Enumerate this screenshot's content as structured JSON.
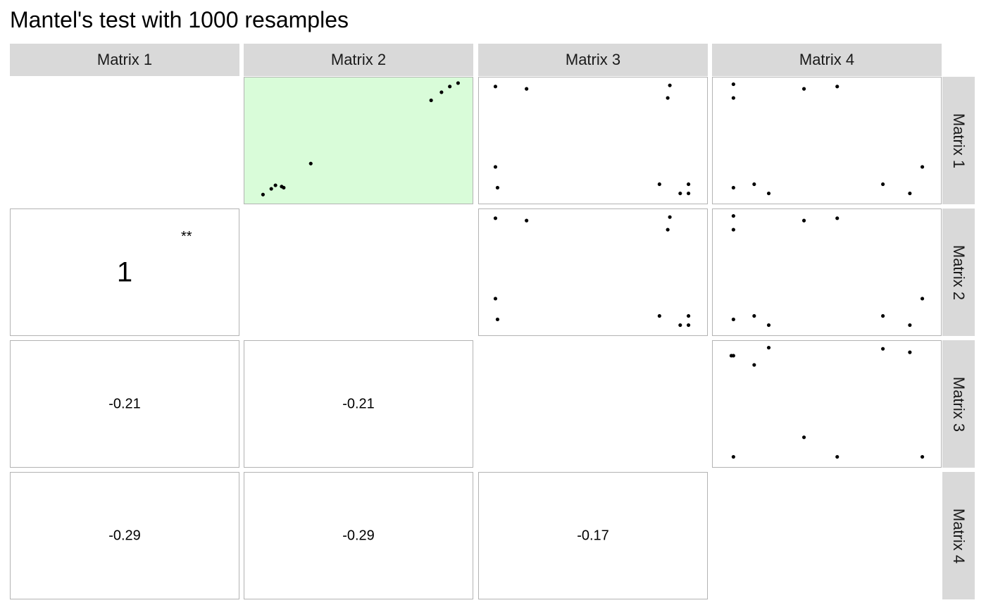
{
  "title": "Mantel's test with 1000 resamples",
  "colors": {
    "strip_bg": "#d9d9d9",
    "panel_border": "#b3b3b3",
    "significant_fill": "#d9fcd9",
    "point": "#000000"
  },
  "matrix_labels": [
    "Matrix 1",
    "Matrix 2",
    "Matrix 3",
    "Matrix 4"
  ],
  "chart_data": {
    "type": "scatter",
    "title": "Mantel's test with 1000 resamples",
    "layout": "pairs matrix: upper triangle shows distance scatterplots, lower triangle shows Mantel correlation r",
    "correlations": [
      {
        "row": "Matrix 2",
        "col": "Matrix 1",
        "r": "1",
        "stars": "**",
        "significant": true
      },
      {
        "row": "Matrix 3",
        "col": "Matrix 1",
        "r": "-0.21",
        "stars": "",
        "significant": false
      },
      {
        "row": "Matrix 3",
        "col": "Matrix 2",
        "r": "-0.21",
        "stars": "",
        "significant": false
      },
      {
        "row": "Matrix 4",
        "col": "Matrix 1",
        "r": "-0.29",
        "stars": "",
        "significant": false
      },
      {
        "row": "Matrix 4",
        "col": "Matrix 2",
        "r": "-0.29",
        "stars": "",
        "significant": false
      },
      {
        "row": "Matrix 4",
        "col": "Matrix 3",
        "r": "-0.17",
        "stars": "",
        "significant": false
      }
    ],
    "scatter_panels": [
      {
        "row": "Matrix 1",
        "col": "Matrix 2",
        "significant": true,
        "points": [
          [
            0.1,
            0.11
          ],
          [
            0.14,
            0.09
          ],
          [
            0.04,
            0.03
          ],
          [
            0.08,
            0.08
          ],
          [
            0.13,
            0.1
          ],
          [
            0.27,
            0.3
          ],
          [
            0.9,
            0.92
          ],
          [
            0.85,
            0.85
          ],
          [
            0.94,
            0.97
          ],
          [
            0.98,
            1.0
          ]
        ]
      },
      {
        "row": "Matrix 1",
        "col": "Matrix 3",
        "significant": false,
        "points": [
          [
            0.03,
            0.97
          ],
          [
            0.18,
            0.95
          ],
          [
            0.87,
            0.98
          ],
          [
            0.86,
            0.87
          ],
          [
            0.03,
            0.27
          ],
          [
            0.04,
            0.09
          ],
          [
            0.82,
            0.12
          ],
          [
            0.92,
            0.04
          ],
          [
            0.96,
            0.12
          ],
          [
            0.96,
            0.04
          ]
        ]
      },
      {
        "row": "Matrix 1",
        "col": "Matrix 4",
        "significant": false,
        "points": [
          [
            0.05,
            0.99
          ],
          [
            0.05,
            0.87
          ],
          [
            0.39,
            0.95
          ],
          [
            0.55,
            0.97
          ],
          [
            0.96,
            0.27
          ],
          [
            0.05,
            0.09
          ],
          [
            0.15,
            0.12
          ],
          [
            0.22,
            0.04
          ],
          [
            0.77,
            0.12
          ],
          [
            0.9,
            0.04
          ]
        ]
      },
      {
        "row": "Matrix 2",
        "col": "Matrix 3",
        "significant": false,
        "points": [
          [
            0.03,
            0.97
          ],
          [
            0.18,
            0.95
          ],
          [
            0.87,
            0.98
          ],
          [
            0.86,
            0.87
          ],
          [
            0.03,
            0.27
          ],
          [
            0.04,
            0.09
          ],
          [
            0.82,
            0.12
          ],
          [
            0.92,
            0.04
          ],
          [
            0.96,
            0.12
          ],
          [
            0.96,
            0.04
          ]
        ]
      },
      {
        "row": "Matrix 2",
        "col": "Matrix 4",
        "significant": false,
        "points": [
          [
            0.05,
            0.99
          ],
          [
            0.05,
            0.87
          ],
          [
            0.39,
            0.95
          ],
          [
            0.55,
            0.97
          ],
          [
            0.96,
            0.27
          ],
          [
            0.05,
            0.09
          ],
          [
            0.15,
            0.12
          ],
          [
            0.22,
            0.04
          ],
          [
            0.77,
            0.12
          ],
          [
            0.9,
            0.04
          ]
        ]
      },
      {
        "row": "Matrix 3",
        "col": "Matrix 4",
        "significant": false,
        "points": [
          [
            0.05,
            0.92
          ],
          [
            0.04,
            0.92
          ],
          [
            0.15,
            0.84
          ],
          [
            0.22,
            0.99
          ],
          [
            0.39,
            0.21
          ],
          [
            0.55,
            0.04
          ],
          [
            0.77,
            0.98
          ],
          [
            0.9,
            0.95
          ],
          [
            0.05,
            0.04
          ],
          [
            0.96,
            0.04
          ]
        ]
      }
    ]
  }
}
